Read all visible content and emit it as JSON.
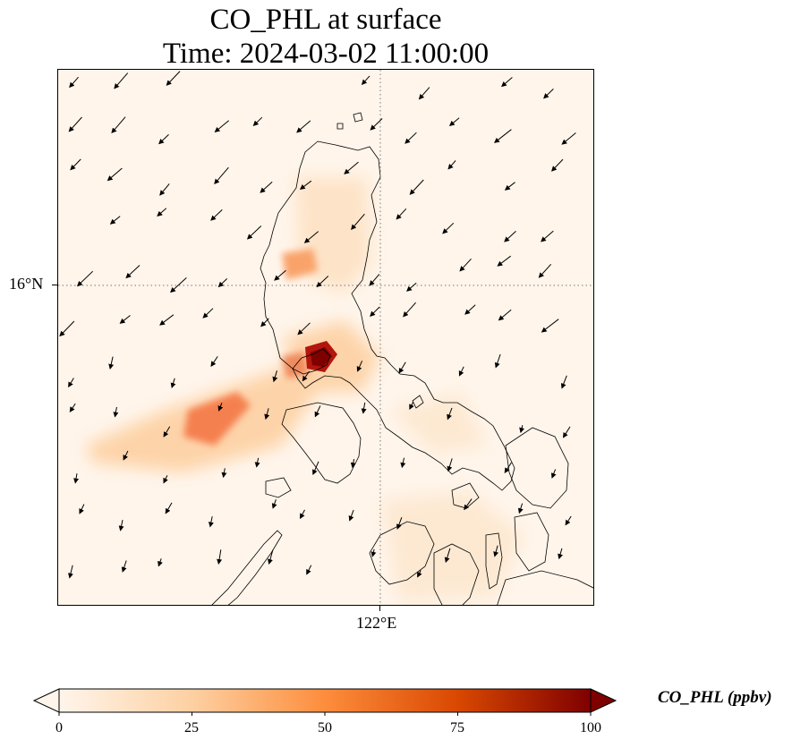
{
  "title": {
    "line1": "CO_PHL at surface",
    "line2": "Time: 2024-03-02 11:00:00"
  },
  "axes": {
    "lat_label": "16°N",
    "lon_label": "122°E",
    "gridlines": "dotted"
  },
  "colorbar": {
    "label": "CO_PHL (ppbv)",
    "min": 0,
    "max": 100,
    "ticks": [
      "0",
      "25",
      "50",
      "75",
      "100"
    ],
    "colormap": [
      "#fff5eb",
      "#fdd0a2",
      "#fd8d3c",
      "#d94801",
      "#7f0000"
    ],
    "extend": "both"
  },
  "map": {
    "background_color": "#fff5eb",
    "coastline_color": "#000000",
    "wind_vector_color": "#000000"
  }
}
